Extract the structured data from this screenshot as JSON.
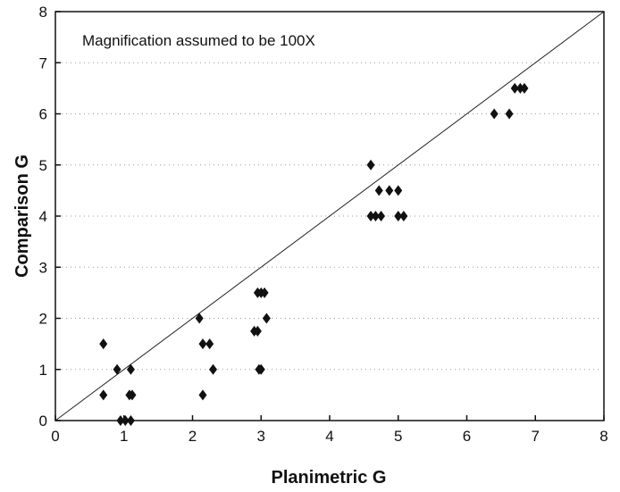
{
  "chart_data": {
    "type": "scatter",
    "title": "",
    "annotation": "Magnification assumed to be 100X",
    "xlabel": "Planimetric G",
    "ylabel": "Comparison G",
    "xlim": [
      0,
      8
    ],
    "ylim": [
      0,
      8
    ],
    "xticks": [
      "0",
      "1",
      "2",
      "3",
      "4",
      "5",
      "6",
      "7",
      "8"
    ],
    "yticks": [
      "0",
      "1",
      "2",
      "3",
      "4",
      "5",
      "6",
      "7",
      "8"
    ],
    "grid": "dotted horizontal",
    "reference_line": {
      "from": [
        0,
        0
      ],
      "to": [
        8,
        8
      ]
    },
    "marker": "diamond",
    "marker_color": "#111111",
    "points": [
      {
        "x": 0.7,
        "y": 1.5
      },
      {
        "x": 0.7,
        "y": 0.5
      },
      {
        "x": 0.9,
        "y": 1.0
      },
      {
        "x": 0.95,
        "y": 0.0
      },
      {
        "x": 1.02,
        "y": 0.0
      },
      {
        "x": 1.1,
        "y": 0.0
      },
      {
        "x": 1.08,
        "y": 0.5
      },
      {
        "x": 1.12,
        "y": 0.5
      },
      {
        "x": 1.1,
        "y": 1.0
      },
      {
        "x": 2.1,
        "y": 2.0
      },
      {
        "x": 2.15,
        "y": 1.5
      },
      {
        "x": 2.25,
        "y": 1.5
      },
      {
        "x": 2.15,
        "y": 0.5
      },
      {
        "x": 2.3,
        "y": 1.0
      },
      {
        "x": 2.9,
        "y": 1.75
      },
      {
        "x": 2.95,
        "y": 1.75
      },
      {
        "x": 2.95,
        "y": 2.5
      },
      {
        "x": 3.0,
        "y": 2.5
      },
      {
        "x": 3.05,
        "y": 2.5
      },
      {
        "x": 2.97,
        "y": 1.0
      },
      {
        "x": 3.0,
        "y": 1.0
      },
      {
        "x": 3.08,
        "y": 2.0
      },
      {
        "x": 4.6,
        "y": 5.0
      },
      {
        "x": 4.6,
        "y": 4.0
      },
      {
        "x": 4.67,
        "y": 4.0
      },
      {
        "x": 4.75,
        "y": 4.0
      },
      {
        "x": 4.72,
        "y": 4.5
      },
      {
        "x": 4.87,
        "y": 4.5
      },
      {
        "x": 5.0,
        "y": 4.5
      },
      {
        "x": 5.0,
        "y": 4.0
      },
      {
        "x": 5.08,
        "y": 4.0
      },
      {
        "x": 6.4,
        "y": 6.0
      },
      {
        "x": 6.62,
        "y": 6.0
      },
      {
        "x": 6.7,
        "y": 6.5
      },
      {
        "x": 6.78,
        "y": 6.5
      },
      {
        "x": 6.84,
        "y": 6.5
      }
    ]
  }
}
